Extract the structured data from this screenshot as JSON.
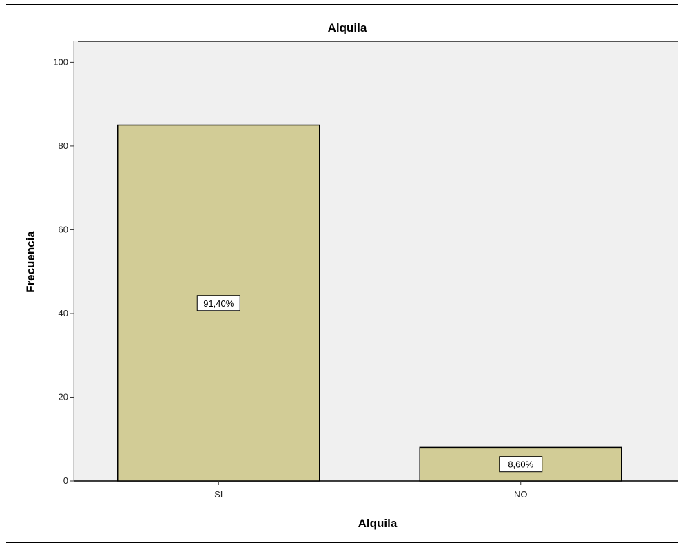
{
  "chart_data": {
    "type": "bar",
    "title": "Alquila",
    "xlabel": "Alquila",
    "ylabel": "Frecuencia",
    "categories": [
      "SI",
      "NO"
    ],
    "values": [
      85,
      8
    ],
    "data_labels": [
      "91,40%",
      "8,60%"
    ],
    "ylim": [
      0,
      105
    ],
    "yticks": [
      0,
      20,
      40,
      60,
      80,
      100
    ],
    "ytick_labels": [
      "0",
      "20",
      "40",
      "60",
      "80",
      "100"
    ],
    "grid": false,
    "legend": "none",
    "colors": {
      "bar_fill": "#D2CC96",
      "bar_stroke": "#000000",
      "plot_background": "#F0F0F0",
      "page_background": "#FFFFFF"
    }
  }
}
